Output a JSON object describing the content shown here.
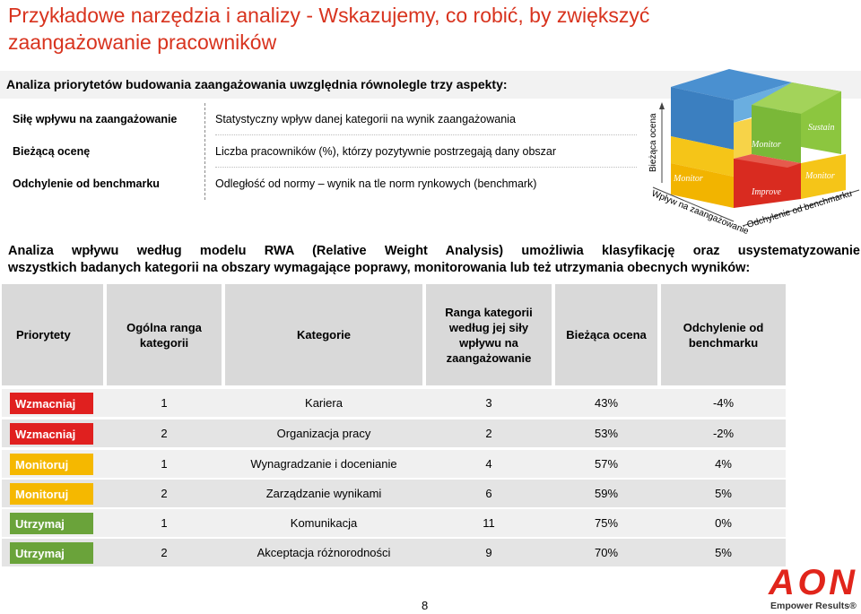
{
  "title": "Przykładowe narzędzia i analizy - Wskazujemy, co robić, by zwiększyć zaangażowanie pracowników",
  "subtitle": "Analiza priorytetów budowania zaangażowania uwzględnia równolegle trzy aspekty:",
  "aspects": [
    {
      "name": "Siłę wpływu na zaangażowanie",
      "desc": "Statystyczny wpływ danej kategorii na wynik zaangażowania"
    },
    {
      "name": "Bieżącą ocenę",
      "desc": "Liczba pracowników (%), którzy pozytywnie postrzegają dany obszar"
    },
    {
      "name": "Odchylenie od benchmarku",
      "desc": "Odległość od normy – wynik na tle norm rynkowych (benchmark)"
    }
  ],
  "cube": {
    "axis_vertical": "Bieżąca ocena",
    "axis_left": "Wpływ na zaangażowanie",
    "axis_right": "Odchylenie od benchmarku",
    "labels": {
      "monitor_top": "Monitor",
      "sustain": "Sustain",
      "monitor_left": "Monitor",
      "improve": "Improve",
      "monitor_right": "Monitor"
    },
    "colors": {
      "blue": "#3b82c4",
      "yellow": "#f2c21b",
      "green": "#7ab838",
      "red": "#d92b20"
    }
  },
  "intro_line1": "Analiza wpływu według modelu RWA (Relative Weight Analysis) umożliwia klasyfikację oraz usystematyzowanie",
  "intro_line2": "wszystkich badanych kategorii na obszary wymagające poprawy, monitorowania lub też utrzymania obecnych wyników:",
  "table": {
    "headers": [
      "Priorytety",
      "Ogólna ranga kategorii",
      "Kategorie",
      "Ranga kategorii według jej siły wpływu na zaangażowanie",
      "Bieżąca ocena",
      "Odchylenie od benchmarku"
    ],
    "rows": [
      {
        "priority": "Wzmacniaj",
        "color": "#e0201f",
        "rank": "1",
        "category": "Kariera",
        "impact_rank": "3",
        "score": "43%",
        "deviation": "-4%"
      },
      {
        "priority": "Wzmacniaj",
        "color": "#e0201f",
        "rank": "2",
        "category": "Organizacja pracy",
        "impact_rank": "2",
        "score": "53%",
        "deviation": "-2%"
      },
      {
        "priority": "Monitoruj",
        "color": "#f5b800",
        "rank": "1",
        "category": "Wynagradzanie i docenianie",
        "impact_rank": "4",
        "score": "57%",
        "deviation": "4%"
      },
      {
        "priority": "Monitoruj",
        "color": "#f5b800",
        "rank": "2",
        "category": "Zarządzanie wynikami",
        "impact_rank": "6",
        "score": "59%",
        "deviation": "5%"
      },
      {
        "priority": "Utrzymaj",
        "color": "#6aa33a",
        "rank": "1",
        "category": "Komunikacja",
        "impact_rank": "11",
        "score": "75%",
        "deviation": "0%"
      },
      {
        "priority": "Utrzymaj",
        "color": "#6aa33a",
        "rank": "2",
        "category": "Akceptacja różnorodności",
        "impact_rank": "9",
        "score": "70%",
        "deviation": "5%"
      }
    ]
  },
  "logo": {
    "brand": "AON",
    "tagline": "Empower Results®",
    "color": "#e1251b"
  },
  "page_number": "8"
}
